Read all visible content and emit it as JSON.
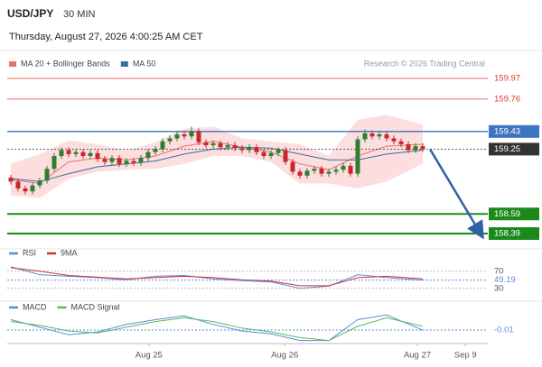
{
  "chart_data": [
    {
      "type": "candlestick",
      "title": "USD/JPY",
      "subtitle": "30 MIN",
      "timestamp": "Thursday, August 27, 2026 4:00:25 AM CET",
      "source": "Research © 2026 Trading Central",
      "x": [
        0,
        1,
        2,
        3,
        4,
        5,
        6,
        7,
        8,
        9,
        10,
        11,
        12,
        13,
        14,
        15,
        16,
        17,
        18,
        19,
        20,
        21,
        22,
        23,
        24,
        25,
        26,
        27,
        28,
        29,
        30,
        31,
        32,
        33,
        34,
        35,
        36,
        37,
        38,
        39,
        40,
        41,
        42,
        43,
        44,
        45,
        46,
        47,
        48,
        49,
        50,
        51,
        52,
        53,
        54,
        55,
        56,
        57
      ],
      "open": [
        158.96,
        158.92,
        158.85,
        158.82,
        158.88,
        158.93,
        159.05,
        159.18,
        159.24,
        159.2,
        159.22,
        159.18,
        159.21,
        159.15,
        159.12,
        159.16,
        159.1,
        159.13,
        159.11,
        159.16,
        159.22,
        159.25,
        159.33,
        159.36,
        159.4,
        159.38,
        159.43,
        159.32,
        159.29,
        159.31,
        159.27,
        159.29,
        159.26,
        159.24,
        159.27,
        159.22,
        159.18,
        159.21,
        159.24,
        159.12,
        159.02,
        158.98,
        159.03,
        159.05,
        159.0,
        159.02,
        159.04,
        159.08,
        159.0,
        159.35,
        159.41,
        159.38,
        159.4,
        159.36,
        159.33,
        159.3,
        159.24,
        159.28
      ],
      "high": [
        158.99,
        158.95,
        158.88,
        158.91,
        158.96,
        159.08,
        159.21,
        159.27,
        159.27,
        159.25,
        159.25,
        159.24,
        159.24,
        159.18,
        159.19,
        159.19,
        159.16,
        159.16,
        159.19,
        159.25,
        159.28,
        159.36,
        159.39,
        159.43,
        159.43,
        159.48,
        159.46,
        159.35,
        159.34,
        159.34,
        159.32,
        159.32,
        159.29,
        159.3,
        159.3,
        159.25,
        159.24,
        159.27,
        159.27,
        159.15,
        159.05,
        159.06,
        159.08,
        159.08,
        159.05,
        159.07,
        159.11,
        159.11,
        159.38,
        159.45,
        159.44,
        159.43,
        159.43,
        159.39,
        159.36,
        159.33,
        159.31,
        159.31
      ],
      "low": [
        158.89,
        158.82,
        158.79,
        158.79,
        158.85,
        158.9,
        159.02,
        159.15,
        159.17,
        159.17,
        159.15,
        159.15,
        159.12,
        159.09,
        159.09,
        159.07,
        159.07,
        159.08,
        159.08,
        159.13,
        159.19,
        159.22,
        159.3,
        159.33,
        159.35,
        159.35,
        159.29,
        159.26,
        159.26,
        159.24,
        159.24,
        159.23,
        159.21,
        159.21,
        159.19,
        159.15,
        159.15,
        159.18,
        159.09,
        158.99,
        158.95,
        158.95,
        159.0,
        158.97,
        158.97,
        158.99,
        159.01,
        158.97,
        158.97,
        159.32,
        159.35,
        159.35,
        159.33,
        159.3,
        159.27,
        159.21,
        159.21,
        159.22
      ],
      "close": [
        158.92,
        158.85,
        158.82,
        158.88,
        158.93,
        159.05,
        159.18,
        159.24,
        159.2,
        159.22,
        159.18,
        159.21,
        159.15,
        159.12,
        159.16,
        159.1,
        159.13,
        159.11,
        159.16,
        159.22,
        159.25,
        159.33,
        159.36,
        159.4,
        159.38,
        159.43,
        159.32,
        159.29,
        159.31,
        159.27,
        159.29,
        159.26,
        159.24,
        159.27,
        159.22,
        159.18,
        159.21,
        159.24,
        159.12,
        159.02,
        158.98,
        159.03,
        159.05,
        159.0,
        159.02,
        159.04,
        159.08,
        159.0,
        159.35,
        159.41,
        159.38,
        159.4,
        159.36,
        159.33,
        159.3,
        159.24,
        159.28,
        159.25
      ],
      "up_color": "#2e7d32",
      "down_color": "#c62828",
      "xlim": [
        -0.5,
        66
      ],
      "ylim": [
        158.28,
        160.2
      ],
      "xticks": [
        {
          "value": 19.1,
          "label": "Aug 25"
        },
        {
          "value": 37.9,
          "label": "Aug 26"
        },
        {
          "value": 56.25,
          "label": "Aug 27"
        },
        {
          "value": 62.9,
          "label": "Sep 9"
        }
      ],
      "overlays": [
        {
          "name": "MA 20 + Bollinger Bands",
          "color": "#e57373",
          "band_color": "#fbd3d3",
          "x": [
            0,
            4,
            8,
            12,
            16,
            20,
            24,
            28,
            32,
            36,
            40,
            44,
            48,
            52,
            57
          ],
          "upper": [
            159.1,
            159.2,
            159.34,
            159.3,
            159.24,
            159.32,
            159.46,
            159.48,
            159.36,
            159.33,
            159.3,
            159.18,
            159.55,
            159.6,
            159.5
          ],
          "lower": [
            158.78,
            158.75,
            158.95,
            159.02,
            159.04,
            159.05,
            159.1,
            159.18,
            159.18,
            159.12,
            158.9,
            158.9,
            158.85,
            158.92,
            159.1
          ],
          "values": [
            158.94,
            158.9,
            159.12,
            159.16,
            159.14,
            159.18,
            159.28,
            159.33,
            159.27,
            159.22,
            159.1,
            159.04,
            159.18,
            159.28,
            159.3
          ]
        },
        {
          "name": "MA 50",
          "color": "#3a6ea5",
          "x": [
            0,
            4,
            8,
            12,
            16,
            20,
            24,
            28,
            32,
            36,
            40,
            44,
            48,
            52,
            57
          ],
          "values": [
            158.95,
            158.92,
            159.0,
            159.07,
            159.1,
            159.13,
            159.2,
            159.25,
            159.27,
            159.26,
            159.2,
            159.14,
            159.14,
            159.2,
            159.24
          ]
        }
      ],
      "levels": [
        {
          "value": 159.97,
          "color": "#e53935",
          "width": 0.8,
          "dashed": false,
          "boxed": false
        },
        {
          "value": 159.76,
          "color": "#e53935",
          "width": 0.8,
          "dashed": false,
          "boxed": false
        },
        {
          "value": 159.43,
          "color": "#3d72c4",
          "width": 1.3,
          "dashed": false,
          "boxed": true
        },
        {
          "value": 159.25,
          "color": "#333333",
          "width": 0.8,
          "dashed": true,
          "boxed": true
        },
        {
          "value": 158.59,
          "color": "#1b8a1b",
          "width": 2,
          "dashed": false,
          "boxed": true
        },
        {
          "value": 158.39,
          "color": "#1b8a1b",
          "width": 2,
          "dashed": false,
          "boxed": true
        }
      ],
      "projection": {
        "x": [
          58,
          65
        ],
        "values": [
          159.25,
          158.39
        ],
        "color": "#2f5fa8"
      }
    },
    {
      "type": "line",
      "x": [
        0,
        4,
        8,
        12,
        16,
        20,
        24,
        28,
        32,
        36,
        40,
        44,
        48,
        52,
        57
      ],
      "xlim": [
        -0.5,
        66
      ],
      "ylim": [
        0,
        100
      ],
      "yticks": [
        70,
        30
      ],
      "series": [
        {
          "name": "RSI",
          "color": "#5b8dd9",
          "values": [
            80,
            62,
            58,
            55,
            50,
            58,
            60,
            52,
            48,
            45,
            30,
            35,
            62,
            55,
            49.19
          ]
        },
        {
          "name": "9MA",
          "color": "#d32f2f",
          "values": [
            78,
            70,
            60,
            56,
            52,
            55,
            58,
            55,
            50,
            47,
            36,
            36,
            55,
            58,
            52
          ]
        }
      ]
    },
    {
      "type": "line",
      "x": [
        0,
        4,
        8,
        12,
        16,
        20,
        24,
        28,
        32,
        36,
        40,
        44,
        48,
        52,
        57
      ],
      "xlim": [
        -0.5,
        66
      ],
      "ylim": [
        -0.2,
        0.2
      ],
      "yticks": [],
      "series": [
        {
          "name": "MACD",
          "color": "#5b8dd9",
          "values": [
            0.1,
            0.02,
            -0.06,
            -0.03,
            0.05,
            0.1,
            0.14,
            0.05,
            -0.02,
            -0.05,
            -0.12,
            -0.12,
            0.1,
            0.15,
            -0.01
          ]
        },
        {
          "name": "MACD Signal",
          "color": "#5cb85c",
          "values": [
            0.08,
            0.04,
            -0.02,
            -0.04,
            0.02,
            0.08,
            0.12,
            0.08,
            0.01,
            -0.03,
            -0.09,
            -0.12,
            0.03,
            0.12,
            0.03
          ]
        }
      ]
    }
  ]
}
